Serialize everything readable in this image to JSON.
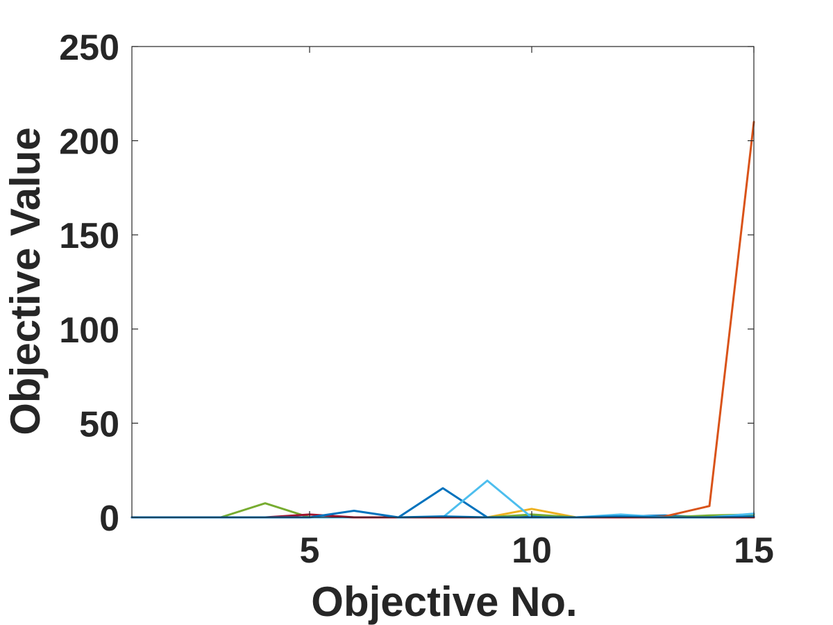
{
  "chart_data": {
    "type": "line",
    "xlabel": "Objective No.",
    "ylabel": "Objective Value",
    "xlim": [
      1,
      15
    ],
    "ylim": [
      0,
      250
    ],
    "xticks": [
      5,
      10,
      15
    ],
    "yticks": [
      0,
      50,
      100,
      150,
      200,
      250
    ],
    "grid": false,
    "x": [
      1,
      2,
      3,
      4,
      5,
      6,
      7,
      8,
      9,
      10,
      11,
      12,
      13,
      14,
      15
    ],
    "series": [
      {
        "color": "#0072BD",
        "values": [
          0,
          0,
          0,
          0,
          0,
          0,
          0,
          15.5,
          0,
          0.5,
          0,
          0.5,
          1,
          0,
          0
        ]
      },
      {
        "color": "#D95319",
        "values": [
          0,
          0,
          0,
          0,
          0,
          0,
          0,
          0,
          0,
          0,
          0,
          0,
          0.5,
          6,
          210
        ]
      },
      {
        "color": "#EDB120",
        "values": [
          0,
          0,
          0,
          0,
          0,
          0,
          0,
          0,
          0,
          4.5,
          0,
          0,
          0,
          0,
          0
        ]
      },
      {
        "color": "#7E2F8E",
        "values": [
          0,
          0,
          0,
          0,
          0,
          0,
          0,
          0,
          0,
          0,
          0,
          0,
          0,
          0,
          0
        ]
      },
      {
        "color": "#77AC30",
        "values": [
          0,
          0,
          0,
          7.5,
          0,
          0,
          0,
          0,
          0,
          1.5,
          0,
          0,
          0,
          1,
          1.5
        ]
      },
      {
        "color": "#4DBEEE",
        "values": [
          0,
          0,
          0,
          0,
          0,
          0,
          0,
          0,
          19.5,
          0,
          0,
          1.5,
          0,
          0,
          2
        ]
      },
      {
        "color": "#A2142F",
        "values": [
          0,
          0,
          0,
          0,
          1.5,
          0,
          0,
          0,
          0,
          0,
          0,
          0,
          0,
          0,
          0
        ]
      },
      {
        "color": "#0072BD",
        "values": [
          0,
          0,
          0,
          0,
          0,
          3.5,
          0,
          0.5,
          0,
          0,
          0,
          0.5,
          0,
          0,
          0.5
        ]
      }
    ]
  }
}
